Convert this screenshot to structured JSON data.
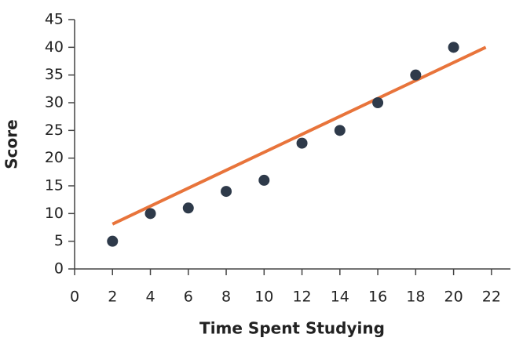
{
  "chart_data": {
    "type": "scatter",
    "x_label": "Time Spent Studying",
    "y_label": "Score",
    "x": [
      2,
      4,
      6,
      8,
      10,
      12,
      14,
      16,
      18,
      20
    ],
    "values": [
      5,
      10,
      11,
      14,
      16,
      22.7,
      25,
      30,
      35,
      40
    ],
    "color": "#2e3a4a",
    "trendline": {
      "x": [
        2,
        21.7
      ],
      "y": [
        8.1,
        40
      ],
      "color": "#e8743b"
    },
    "xlim": [
      0,
      23
    ],
    "xticks": [
      0,
      2,
      4,
      6,
      8,
      10,
      12,
      14,
      16,
      18,
      20,
      22
    ],
    "ylim": [
      0,
      45
    ],
    "yticks": [
      0,
      5,
      10,
      15,
      20,
      25,
      30,
      35,
      40,
      45
    ],
    "grid": false
  }
}
